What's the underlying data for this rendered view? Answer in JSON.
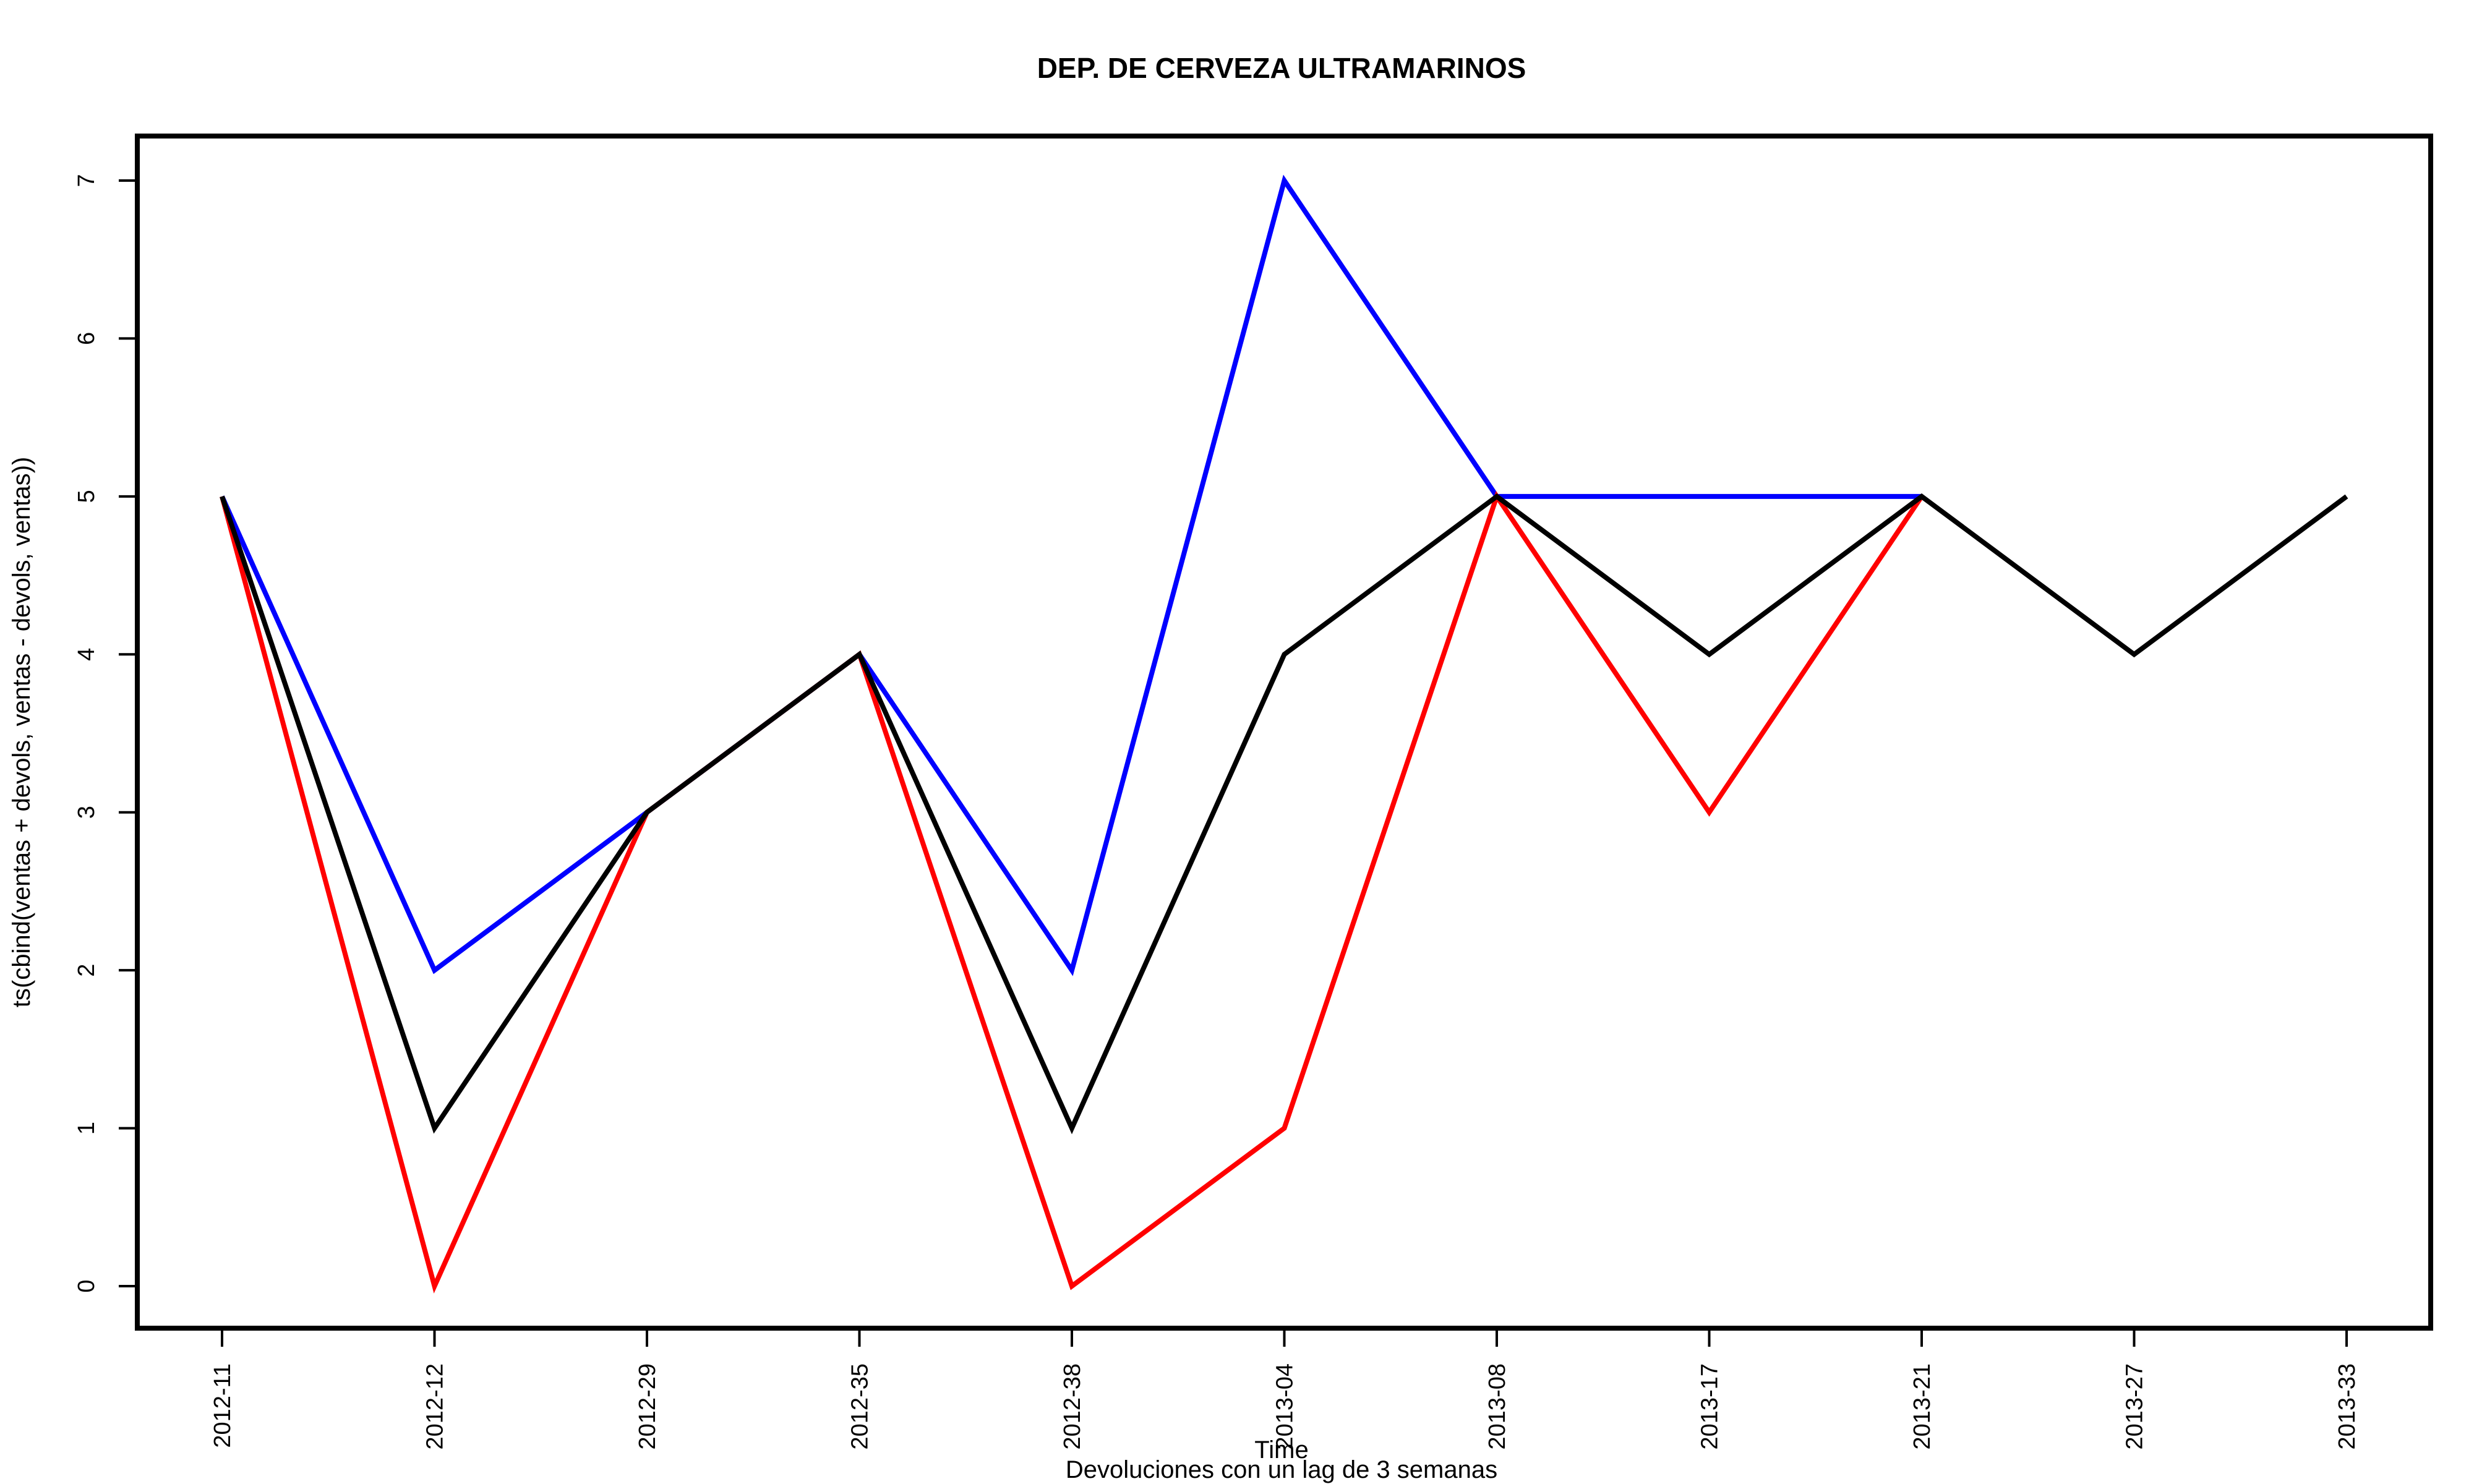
{
  "chart_data": {
    "type": "line",
    "title": "DEP. DE CERVEZA ULTRAMARINOS",
    "xlabel": "Time",
    "subtitle": "Devoluciones con un lag de 3 semanas",
    "ylabel": "ts(cbind(ventas + devols, ventas - devols, ventas))",
    "categories": [
      "2012-11",
      "2012-12",
      "2012-29",
      "2012-35",
      "2012-38",
      "2013-04",
      "2013-08",
      "2013-17",
      "2013-21",
      "2013-27",
      "2013-33"
    ],
    "ylim": [
      0,
      7
    ],
    "yticks": [
      0,
      1,
      2,
      3,
      4,
      5,
      6,
      7
    ],
    "grid": false,
    "series": [
      {
        "color": "#0000FF",
        "values": [
          5,
          2,
          3,
          4,
          2,
          7,
          5,
          5,
          5,
          null,
          null
        ]
      },
      {
        "color": "#FF0000",
        "values": [
          5,
          0,
          3,
          4,
          0,
          1,
          5,
          3,
          5,
          null,
          null
        ]
      },
      {
        "color": "#000000",
        "values": [
          5,
          1,
          3,
          4,
          1,
          4,
          5,
          4,
          5,
          4,
          5
        ]
      }
    ]
  }
}
